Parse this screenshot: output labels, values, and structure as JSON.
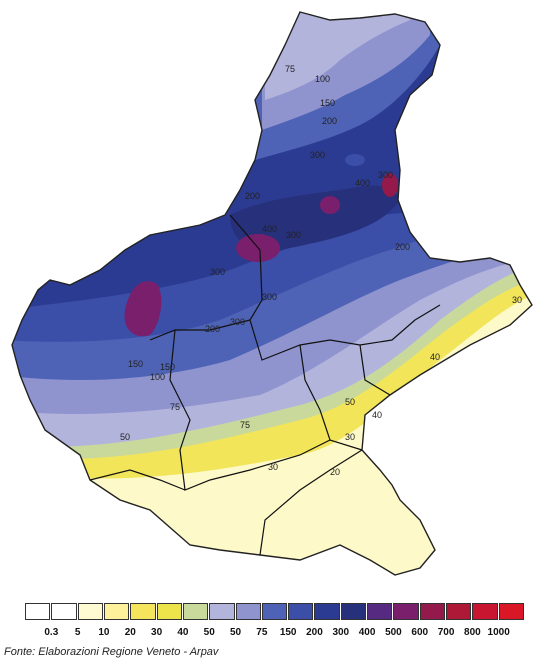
{
  "map": {
    "isolines": [
      {
        "value": "75"
      },
      {
        "value": "100"
      },
      {
        "value": "150"
      },
      {
        "value": "200"
      },
      {
        "value": "300"
      },
      {
        "value": "400"
      },
      {
        "value": "50"
      },
      {
        "value": "40"
      },
      {
        "value": "30"
      },
      {
        "value": "20"
      }
    ],
    "palette": [
      "#ffffff",
      "#ffffff",
      "#fefbd2",
      "#fdf19b",
      "#f4e55d",
      "#ece44a",
      "#c9d99b",
      "#b3b4dc",
      "#8f94cf",
      "#4e63b6",
      "#3b4ea8",
      "#2c3b92",
      "#27307a",
      "#552a80",
      "#7a1f6c",
      "#931a4a",
      "#ae1938",
      "#c81630",
      "#d91726"
    ]
  },
  "legend": {
    "labels": [
      "0.3",
      "5",
      "10",
      "20",
      "30",
      "40",
      "50",
      "50",
      "75",
      "150",
      "200",
      "300",
      "400",
      "500",
      "600",
      "700",
      "800",
      "1000"
    ]
  },
  "source": "Fonte: Elaborazioni Regione Veneto - Arpav"
}
